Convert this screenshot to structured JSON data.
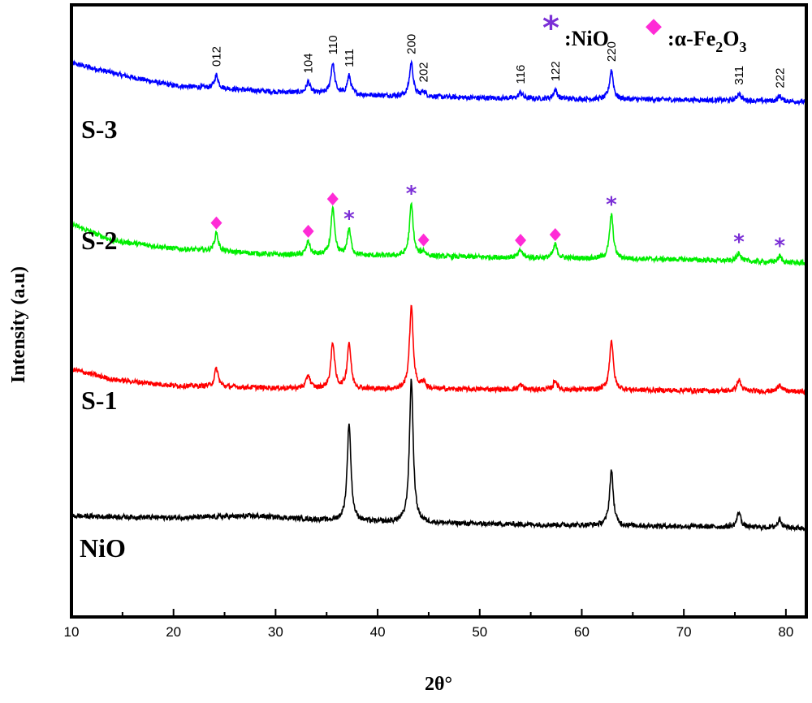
{
  "chart_data": {
    "type": "line",
    "xlabel": "2θ°",
    "ylabel": "Intensity (a.u)",
    "xlim": [
      10,
      82
    ],
    "xticks": [
      10,
      20,
      30,
      40,
      50,
      60,
      70,
      80
    ],
    "grid": false,
    "colors": {
      "NiO": "#000000",
      "S-1": "#ff0000",
      "S-2": "#00ee00",
      "S-3": "#0000ff",
      "nio_marker": "#7b2fd6",
      "fe2o3_marker": "#ff2bd6"
    },
    "series": [
      {
        "name": "S-3",
        "color": "#0000ff",
        "baseline": [
          [
            10,
            0.905
          ],
          [
            15,
            0.885
          ],
          [
            20,
            0.868
          ],
          [
            30,
            0.858
          ],
          [
            40,
            0.852
          ],
          [
            50,
            0.848
          ],
          [
            60,
            0.846
          ],
          [
            70,
            0.845
          ],
          [
            82,
            0.842
          ]
        ],
        "peaks": [
          [
            24.2,
            0.022
          ],
          [
            33.2,
            0.018
          ],
          [
            35.6,
            0.05
          ],
          [
            37.2,
            0.03
          ],
          [
            43.3,
            0.055
          ],
          [
            44.5,
            0.008
          ],
          [
            54.0,
            0.01
          ],
          [
            57.4,
            0.015
          ],
          [
            62.9,
            0.048
          ],
          [
            75.4,
            0.012
          ],
          [
            79.4,
            0.008
          ]
        ]
      },
      {
        "name": "S-2",
        "color": "#00ee00",
        "baseline": [
          [
            10,
            0.642
          ],
          [
            14,
            0.615
          ],
          [
            20,
            0.602
          ],
          [
            30,
            0.592
          ],
          [
            40,
            0.59
          ],
          [
            50,
            0.588
          ],
          [
            60,
            0.586
          ],
          [
            70,
            0.584
          ],
          [
            82,
            0.578
          ]
        ],
        "peaks": [
          [
            24.2,
            0.03
          ],
          [
            33.2,
            0.022
          ],
          [
            35.6,
            0.075
          ],
          [
            37.2,
            0.042
          ],
          [
            43.3,
            0.085
          ],
          [
            44.5,
            0.008
          ],
          [
            54.0,
            0.012
          ],
          [
            57.4,
            0.022
          ],
          [
            62.9,
            0.072
          ],
          [
            75.4,
            0.015
          ],
          [
            79.4,
            0.01
          ]
        ]
      },
      {
        "name": "S-1",
        "color": "#ff0000",
        "baseline": [
          [
            10,
            0.405
          ],
          [
            14,
            0.388
          ],
          [
            20,
            0.378
          ],
          [
            30,
            0.374
          ],
          [
            40,
            0.372
          ],
          [
            50,
            0.372
          ],
          [
            60,
            0.371
          ],
          [
            70,
            0.37
          ],
          [
            82,
            0.368
          ]
        ],
        "peaks": [
          [
            24.2,
            0.03
          ],
          [
            33.2,
            0.022
          ],
          [
            35.6,
            0.075
          ],
          [
            37.2,
            0.075
          ],
          [
            43.3,
            0.135
          ],
          [
            44.5,
            0.012
          ],
          [
            54.0,
            0.008
          ],
          [
            57.4,
            0.015
          ],
          [
            62.9,
            0.082
          ],
          [
            75.4,
            0.018
          ],
          [
            79.4,
            0.012
          ]
        ]
      },
      {
        "name": "NiO",
        "color": "#000000",
        "baseline": [
          [
            10,
            0.165
          ],
          [
            20,
            0.162
          ],
          [
            28,
            0.165
          ],
          [
            35,
            0.158
          ],
          [
            40,
            0.155
          ],
          [
            50,
            0.152
          ],
          [
            60,
            0.15
          ],
          [
            70,
            0.148
          ],
          [
            82,
            0.145
          ]
        ],
        "peaks": [
          [
            37.2,
            0.16
          ],
          [
            43.3,
            0.235
          ],
          [
            62.9,
            0.09
          ],
          [
            75.4,
            0.025
          ],
          [
            79.4,
            0.015
          ]
        ]
      }
    ],
    "series_labels": [
      "S-3",
      "S-2",
      "S-1",
      "NiO"
    ],
    "peak_indices": [
      {
        "label": "012",
        "x": 24.2
      },
      {
        "label": "104",
        "x": 33.2
      },
      {
        "label": "110",
        "x": 35.6
      },
      {
        "label": "111",
        "x": 37.2
      },
      {
        "label": "200",
        "x": 43.3
      },
      {
        "label": "202",
        "x": 44.5
      },
      {
        "label": "116",
        "x": 54.0
      },
      {
        "label": "122",
        "x": 57.4
      },
      {
        "label": "220",
        "x": 62.9
      },
      {
        "label": "311",
        "x": 75.4
      },
      {
        "label": "222",
        "x": 79.4
      }
    ],
    "phase_markers": [
      {
        "phase": "Fe2O3",
        "x": 24.2
      },
      {
        "phase": "Fe2O3",
        "x": 33.2
      },
      {
        "phase": "Fe2O3",
        "x": 35.6
      },
      {
        "phase": "NiO",
        "x": 37.2
      },
      {
        "phase": "NiO",
        "x": 43.3
      },
      {
        "phase": "Fe2O3",
        "x": 44.5
      },
      {
        "phase": "Fe2O3",
        "x": 54.0
      },
      {
        "phase": "Fe2O3",
        "x": 57.4
      },
      {
        "phase": "NiO",
        "x": 62.9
      },
      {
        "phase": "NiO",
        "x": 75.4
      },
      {
        "phase": "NiO",
        "x": 79.4
      }
    ],
    "legend": {
      "position": "top-right",
      "nio_symbol": "*",
      "nio_text": ":NiO",
      "fe_symbol": "◆",
      "fe_text_prefix": ":α-Fe",
      "fe_sub1": "2",
      "fe_mid": "O",
      "fe_sub2": "3"
    }
  }
}
